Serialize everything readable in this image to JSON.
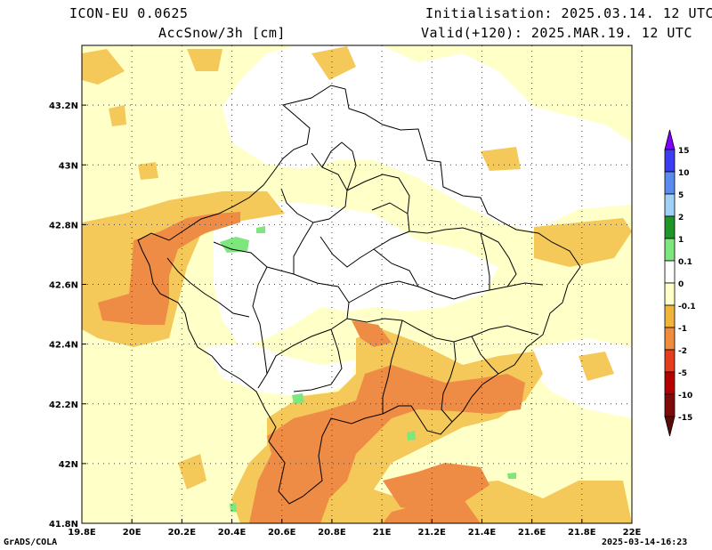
{
  "header": {
    "model": "ICON-EU 0.0625",
    "variable": "AccSnow/3h [cm]",
    "init": "Initialisation: 2025.03.14. 12 UTC",
    "valid": "Valid(+120): 2025.MAR.19. 12 UTC"
  },
  "footer": {
    "left": "GrADS/COLA",
    "right": "2025-03-14-16:23"
  },
  "axes": {
    "x_ticks": [
      "19.8E",
      "20E",
      "20.2E",
      "20.4E",
      "20.6E",
      "20.8E",
      "21E",
      "21.2E",
      "21.4E",
      "21.6E",
      "21.8E",
      "22E"
    ],
    "x_values": [
      19.8,
      20.0,
      20.2,
      20.4,
      20.6,
      20.8,
      21.0,
      21.2,
      21.4,
      21.6,
      21.8,
      22.0
    ],
    "y_ticks": [
      "41.8N",
      "42N",
      "42.2N",
      "42.4N",
      "42.6N",
      "42.8N",
      "43N",
      "43.2N"
    ],
    "y_values": [
      41.8,
      42.0,
      42.2,
      42.4,
      42.6,
      42.8,
      43.0,
      43.2
    ],
    "lon_range": [
      19.8,
      22.0
    ],
    "lat_range": [
      41.8,
      43.4
    ],
    "grid": "dotted"
  },
  "colorbar": {
    "labels": [
      "15",
      "10",
      "5",
      "2",
      "1",
      "0.1",
      "0",
      "-0.1",
      "-1",
      "-2",
      "-5",
      "-10",
      "-15"
    ],
    "colors": [
      "#7f00ff",
      "#3c3cf0",
      "#5a8cf0",
      "#9fd0f5",
      "#1e9628",
      "#7de67d",
      "#ffffff",
      "#ffffc8",
      "#f0b43c",
      "#f08c3c",
      "#e63c1e",
      "#b40000",
      "#7f0a0a"
    ],
    "top_arrow_color": "#7f00ff",
    "bottom_arrow_color": "#5a0a0a"
  },
  "legend_colors": {
    "pale_yellow": "#ffffc8",
    "light_orange": "#f5c85a",
    "orange": "#f0a040",
    "dark_orange": "#ee8c46",
    "light_green": "#7de67d"
  }
}
